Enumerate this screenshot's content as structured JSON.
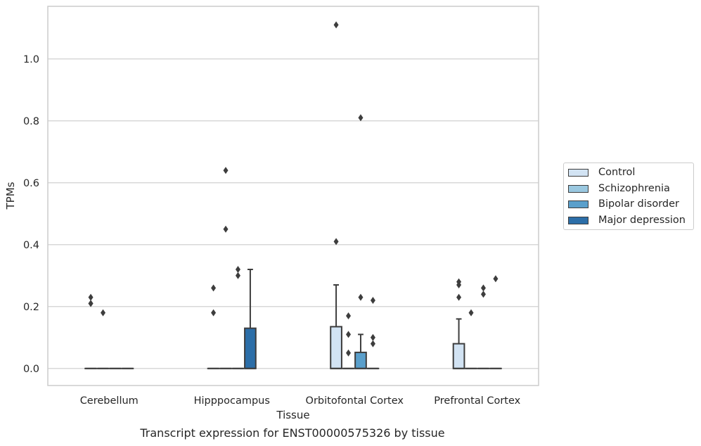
{
  "caption": "Transcript expression for ENST00000575326 by tissue",
  "chart_data": {
    "type": "box",
    "xlabel": "Tissue",
    "ylabel": "TPMs",
    "ylim": [
      -0.055,
      1.17
    ],
    "yticks": [
      "0.0",
      "0.2",
      "0.4",
      "0.6",
      "0.8",
      "1.0"
    ],
    "categories": [
      "Cerebellum",
      "Hipppocampus",
      "Orbitofontal Cortex",
      "Prefrontal Cortex"
    ],
    "grid": "horizontal",
    "legend_position": "right",
    "series": [
      {
        "name": "Control",
        "color": "#d2e3f3",
        "boxes": [
          {
            "q1": 0,
            "median": 0,
            "q3": 0,
            "whislo": 0,
            "whishi": 0,
            "fliers": [
              0.21,
              0.23,
              0.21
            ]
          },
          {
            "q1": 0,
            "median": 0,
            "q3": 0,
            "whislo": 0,
            "whishi": 0,
            "fliers": [
              0.26,
              0.18
            ]
          },
          {
            "q1": 0,
            "median": 0,
            "q3": 0.135,
            "whislo": 0,
            "whishi": 0.27,
            "fliers": [
              0.41,
              1.11
            ]
          },
          {
            "q1": 0,
            "median": 0,
            "q3": 0.08,
            "whislo": 0,
            "whishi": 0.16,
            "fliers": [
              0.28,
              0.27,
              0.23
            ]
          }
        ]
      },
      {
        "name": "Schizophrenia",
        "color": "#9ac8e0",
        "boxes": [
          {
            "q1": 0,
            "median": 0,
            "q3": 0,
            "whislo": 0,
            "whishi": 0,
            "fliers": [
              0.18
            ]
          },
          {
            "q1": 0,
            "median": 0,
            "q3": 0,
            "whislo": 0,
            "whishi": 0,
            "fliers": [
              0.64,
              0.45
            ]
          },
          {
            "q1": 0,
            "median": 0,
            "q3": 0,
            "whislo": 0,
            "whishi": 0,
            "fliers": [
              0.17,
              0.11,
              0.05
            ]
          },
          {
            "q1": 0,
            "median": 0,
            "q3": 0,
            "whislo": 0,
            "whishi": 0,
            "fliers": [
              0.18
            ]
          }
        ]
      },
      {
        "name": "Bipolar disorder",
        "color": "#5a9fcb",
        "boxes": [
          {
            "q1": 0,
            "median": 0,
            "q3": 0,
            "whislo": 0,
            "whishi": 0,
            "fliers": []
          },
          {
            "q1": 0,
            "median": 0,
            "q3": 0,
            "whislo": 0,
            "whishi": 0,
            "fliers": [
              0.32,
              0.3
            ]
          },
          {
            "q1": 0,
            "median": 0,
            "q3": 0.052,
            "whislo": 0,
            "whishi": 0.11,
            "fliers": [
              0.81,
              0.23
            ]
          },
          {
            "q1": 0,
            "median": 0,
            "q3": 0,
            "whislo": 0,
            "whishi": 0,
            "fliers": [
              0.26,
              0.24
            ]
          }
        ]
      },
      {
        "name": "Major depression",
        "color": "#2c6ea8",
        "boxes": [
          {
            "q1": 0,
            "median": 0,
            "q3": 0,
            "whislo": 0,
            "whishi": 0,
            "fliers": []
          },
          {
            "q1": 0,
            "median": 0,
            "q3": 0.13,
            "whislo": 0,
            "whishi": 0.32,
            "fliers": []
          },
          {
            "q1": 0,
            "median": 0,
            "q3": 0,
            "whislo": 0,
            "whishi": 0,
            "fliers": [
              0.22,
              0.1,
              0.08
            ]
          },
          {
            "q1": 0,
            "median": 0,
            "q3": 0,
            "whislo": 0,
            "whishi": 0,
            "fliers": [
              0.29
            ]
          }
        ]
      }
    ]
  }
}
